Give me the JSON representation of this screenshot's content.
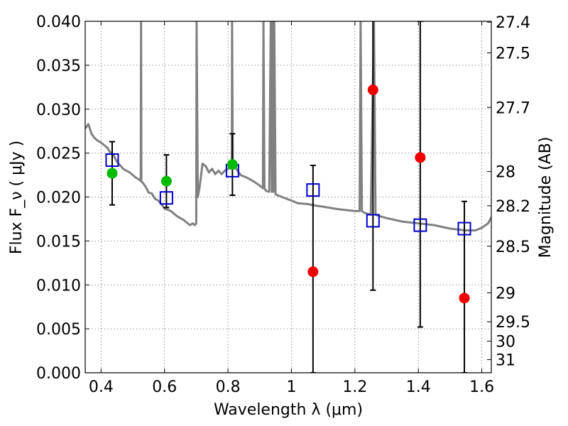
{
  "chart_data": {
    "type": "scatter",
    "xlabel": "Wavelength λ (μm)",
    "ylabel": "Flux F_ν ( μJy )",
    "ylabel_right": "Magnitude (AB)",
    "xlim": [
      0.35,
      1.63
    ],
    "ylim": [
      0.0,
      0.04
    ],
    "grid": true,
    "x_ticks": [
      {
        "value": 0.4,
        "label": "0.4"
      },
      {
        "value": 0.6,
        "label": "0.6"
      },
      {
        "value": 0.8,
        "label": "0.8"
      },
      {
        "value": 1.0,
        "label": "1"
      },
      {
        "value": 1.2,
        "label": "1.2"
      },
      {
        "value": 1.4,
        "label": "1.4"
      },
      {
        "value": 1.6,
        "label": "1.6"
      }
    ],
    "y_ticks": [
      {
        "value": 0.0,
        "label": "0.000"
      },
      {
        "value": 0.005,
        "label": "0.005"
      },
      {
        "value": 0.01,
        "label": "0.010"
      },
      {
        "value": 0.015,
        "label": "0.015"
      },
      {
        "value": 0.02,
        "label": "0.020"
      },
      {
        "value": 0.025,
        "label": "0.025"
      },
      {
        "value": 0.03,
        "label": "0.030"
      },
      {
        "value": 0.035,
        "label": "0.035"
      },
      {
        "value": 0.04,
        "label": "0.040"
      }
    ],
    "right_ticks": [
      {
        "flux": 0.0399,
        "label": "27.4"
      },
      {
        "flux": 0.0364,
        "label": "27.5"
      },
      {
        "flux": 0.0302,
        "label": "27.7"
      },
      {
        "flux": 0.0229,
        "label": "28"
      },
      {
        "flux": 0.019,
        "label": "28.2"
      },
      {
        "flux": 0.0144,
        "label": "28.5"
      },
      {
        "flux": 0.0091,
        "label": "29"
      },
      {
        "flux": 0.0058,
        "label": "29.5"
      },
      {
        "flux": 0.0036,
        "label": "30"
      },
      {
        "flux": 0.0015,
        "label": "31"
      }
    ],
    "colors": {
      "model": "#808080",
      "model_points": "#0000cc",
      "observed_detections": "#00bb00",
      "observed_limits": "#ee0000",
      "errorbar": "#000000"
    },
    "series": [
      {
        "kind": "line",
        "color": "#808080",
        "x": [
          0.35,
          0.36,
          0.37,
          0.38,
          0.39,
          0.4,
          0.41,
          0.42,
          0.43,
          0.44,
          0.45,
          0.46,
          0.47,
          0.48,
          0.49,
          0.5,
          0.51,
          0.52,
          0.525,
          0.526,
          0.527,
          0.53,
          0.54,
          0.55,
          0.56,
          0.57,
          0.58,
          0.59,
          0.6,
          0.62,
          0.64,
          0.66,
          0.68,
          0.69,
          0.695,
          0.7,
          0.701,
          0.705,
          0.71,
          0.72,
          0.73,
          0.74,
          0.75,
          0.76,
          0.77,
          0.78,
          0.79,
          0.8,
          0.812,
          0.813,
          0.815,
          0.82,
          0.83,
          0.84,
          0.86,
          0.88,
          0.9,
          0.91,
          0.912,
          0.915,
          0.92,
          0.93,
          0.935,
          0.938,
          0.94,
          0.943,
          0.946,
          0.95,
          0.97,
          1.0,
          1.02,
          1.05,
          1.08,
          1.1,
          1.15,
          1.2,
          1.215,
          1.218,
          1.222,
          1.23,
          1.25,
          1.26,
          1.265,
          1.28,
          1.3,
          1.35,
          1.4,
          1.45,
          1.5,
          1.55,
          1.58,
          1.6,
          1.62,
          1.63
        ],
        "y": [
          0.0278,
          0.0283,
          0.0272,
          0.0267,
          0.0264,
          0.0262,
          0.0259,
          0.0256,
          0.025,
          0.0247,
          0.024,
          0.0236,
          0.0232,
          0.023,
          0.0228,
          0.0225,
          0.0222,
          0.022,
          0.0218,
          0.04,
          0.0218,
          0.0217,
          0.0212,
          0.0205,
          0.0204,
          0.0198,
          0.0196,
          0.0192,
          0.0187,
          0.0184,
          0.0178,
          0.0174,
          0.0168,
          0.017,
          0.0168,
          0.017,
          0.04,
          0.02,
          0.021,
          0.0238,
          0.0235,
          0.0228,
          0.0232,
          0.0226,
          0.023,
          0.0226,
          0.023,
          0.0232,
          0.0234,
          0.04,
          0.024,
          0.0236,
          0.023,
          0.0225,
          0.0222,
          0.0218,
          0.0213,
          0.021,
          0.04,
          0.021,
          0.0207,
          0.0206,
          0.04,
          0.0206,
          0.04,
          0.0206,
          0.04,
          0.0203,
          0.02,
          0.0196,
          0.0193,
          0.0192,
          0.019,
          0.0189,
          0.0186,
          0.0184,
          0.0184,
          0.04,
          0.0184,
          0.0182,
          0.018,
          0.04,
          0.018,
          0.0178,
          0.0176,
          0.0172,
          0.017,
          0.0168,
          0.0164,
          0.0162,
          0.0162,
          0.0165,
          0.017,
          0.0177
        ]
      },
      {
        "kind": "markers",
        "marker": "open-square",
        "color": "#0000cc",
        "points": [
          {
            "x": 0.435,
            "y": 0.0242
          },
          {
            "x": 0.606,
            "y": 0.0199
          },
          {
            "x": 0.814,
            "y": 0.023
          },
          {
            "x": 1.068,
            "y": 0.0208
          },
          {
            "x": 1.257,
            "y": 0.0173
          },
          {
            "x": 1.406,
            "y": 0.0168
          },
          {
            "x": 1.545,
            "y": 0.0164
          }
        ]
      },
      {
        "kind": "markers",
        "marker": "filled-circle",
        "color": "#00bb00",
        "points": [
          {
            "x": 0.435,
            "y": 0.0227,
            "err_lo": 0.0036,
            "err_hi": 0.0036
          },
          {
            "x": 0.606,
            "y": 0.0218,
            "err_lo": 0.003,
            "err_hi": 0.003
          },
          {
            "x": 0.814,
            "y": 0.0237,
            "err_lo": 0.0035,
            "err_hi": 0.0035
          }
        ]
      },
      {
        "kind": "markers",
        "marker": "filled-circle",
        "color": "#ee0000",
        "points": [
          {
            "x": 1.068,
            "y": 0.0115,
            "err_lo": 0.0115,
            "err_hi": 0.0121
          },
          {
            "x": 1.257,
            "y": 0.0322,
            "err_lo": 0.0228,
            "err_hi": 0.008
          },
          {
            "x": 1.406,
            "y": 0.0245,
            "err_lo": 0.0193,
            "err_hi": 0.0155
          },
          {
            "x": 1.545,
            "y": 0.0085,
            "err_lo": 0.0085,
            "err_hi": 0.011
          }
        ]
      }
    ]
  }
}
